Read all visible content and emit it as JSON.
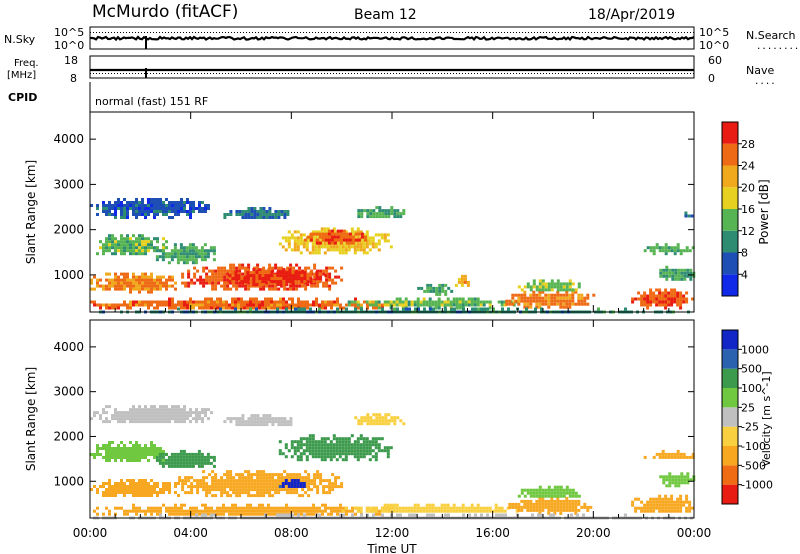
{
  "header": {
    "station": "McMurdo (fitACF)",
    "beam": "Beam 12",
    "date": "18/Apr/2019"
  },
  "strip_nsky": {
    "left_label": "N.Sky",
    "left_ticks": [
      "10^5",
      "10^0"
    ],
    "right_ticks": [
      "10^5",
      "10^0"
    ],
    "right_label": "N.Search",
    "right_legend": "........"
  },
  "strip_freq": {
    "label_line1": "Freq.",
    "label_line2": "[MHz]",
    "left_ticks": [
      "18",
      "8"
    ],
    "right_ticks": [
      "60",
      "0"
    ],
    "right_label": "Nave",
    "right_legend": "...."
  },
  "cpid": {
    "label": "CPID",
    "mode": "normal (fast) 151 RF"
  },
  "time_axis": {
    "ticks": [
      "00:00",
      "04:00",
      "08:00",
      "12:00",
      "16:00",
      "20:00",
      "00:00"
    ],
    "label": "Time UT"
  },
  "chart_data": [
    {
      "type": "heatmap",
      "title": "",
      "xlabel": "Time UT",
      "ylabel": "Slant Range [km]",
      "x_range_hours": [
        0,
        24
      ],
      "ylim": [
        180,
        4600
      ],
      "y_ticks": [
        1000,
        2000,
        3000,
        4000
      ],
      "colorbar": {
        "label": "Power [dB]",
        "ticks": [
          "4",
          "8",
          "12",
          "16",
          "20",
          "24",
          "28"
        ],
        "levels": [
          0,
          4,
          8,
          12,
          16,
          20,
          24,
          28,
          30
        ],
        "colors": [
          "#1028e8",
          "#1e4fb4",
          "#2e8c73",
          "#57b453",
          "#e8d020",
          "#f0a81c",
          "#ef6a14",
          "#e81c12"
        ]
      },
      "regions": [
        {
          "t": [
            0.0,
            4.8
          ],
          "r": [
            2300,
            2700
          ],
          "level": 6
        },
        {
          "t": [
            5.3,
            8.0
          ],
          "r": [
            2250,
            2500
          ],
          "level": 8
        },
        {
          "t": [
            10.5,
            12.5
          ],
          "r": [
            2280,
            2520
          ],
          "level": 12
        },
        {
          "t": [
            0.0,
            3.0
          ],
          "r": [
            1450,
            1900
          ],
          "level": 14
        },
        {
          "t": [
            2.5,
            5.0
          ],
          "r": [
            1300,
            1700
          ],
          "level": 12
        },
        {
          "t": [
            7.5,
            12.0
          ],
          "r": [
            1500,
            2050
          ],
          "level": 19
        },
        {
          "t": [
            8.5,
            11.0
          ],
          "r": [
            1700,
            2000
          ],
          "level": 27
        },
        {
          "t": [
            0.0,
            3.5
          ],
          "r": [
            650,
            1050
          ],
          "level": 25
        },
        {
          "t": [
            3.5,
            10.0
          ],
          "r": [
            700,
            1250
          ],
          "level": 27
        },
        {
          "t": [
            5.5,
            9.5
          ],
          "r": [
            800,
            1150
          ],
          "level": 29
        },
        {
          "t": [
            0.0,
            12.0
          ],
          "r": [
            250,
            500
          ],
          "level": 26
        },
        {
          "t": [
            10.0,
            17.0
          ],
          "r": [
            300,
            500
          ],
          "level": 14
        },
        {
          "t": [
            13.0,
            14.5
          ],
          "r": [
            600,
            800
          ],
          "level": 12
        },
        {
          "t": [
            14.5,
            15.0
          ],
          "r": [
            750,
            1000
          ],
          "level": 22
        },
        {
          "t": [
            16.5,
            20.0
          ],
          "r": [
            300,
            650
          ],
          "level": 25
        },
        {
          "t": [
            17.0,
            19.5
          ],
          "r": [
            650,
            900
          ],
          "level": 15
        },
        {
          "t": [
            21.5,
            24.0
          ],
          "r": [
            300,
            700
          ],
          "level": 27
        },
        {
          "t": [
            22.0,
            24.0
          ],
          "r": [
            1500,
            1700
          ],
          "level": 13
        },
        {
          "t": [
            22.5,
            24.0
          ],
          "r": [
            900,
            1200
          ],
          "level": 12
        },
        {
          "t": [
            23.5,
            24.0
          ],
          "r": [
            2300,
            2400
          ],
          "level": 8
        },
        {
          "t": [
            0.0,
            24.0
          ],
          "r": [
            180,
            280
          ],
          "level": 10
        }
      ]
    },
    {
      "type": "heatmap",
      "title": "",
      "xlabel": "Time UT",
      "ylabel": "Slant Range [km]",
      "x_range_hours": [
        0,
        24
      ],
      "ylim": [
        180,
        4600
      ],
      "y_ticks": [
        1000,
        2000,
        3000,
        4000
      ],
      "colorbar": {
        "label": "Velocity [m s^-1]",
        "ticks": [
          "1000",
          "500",
          "100",
          "25",
          "-25",
          "-100",
          "-500",
          "-1000"
        ],
        "levels": [
          -1500,
          -1000,
          -500,
          -100,
          -25,
          25,
          100,
          500,
          1000,
          1500
        ],
        "colors": [
          "#e81c12",
          "#f06c14",
          "#f8a820",
          "#f8d040",
          "#c0c0c0",
          "#70c840",
          "#3c9a4c",
          "#2a62b0",
          "#1226c8"
        ]
      },
      "regions": [
        {
          "t": [
            0.0,
            4.8
          ],
          "r": [
            2300,
            2700
          ],
          "value": 0
        },
        {
          "t": [
            5.3,
            8.0
          ],
          "r": [
            2250,
            2500
          ],
          "value": 0
        },
        {
          "t": [
            10.5,
            12.5
          ],
          "r": [
            2280,
            2520
          ],
          "value": -60
        },
        {
          "t": [
            0.0,
            3.0
          ],
          "r": [
            1450,
            1900
          ],
          "value": 60
        },
        {
          "t": [
            2.5,
            5.0
          ],
          "r": [
            1300,
            1700
          ],
          "value": 150
        },
        {
          "t": [
            7.5,
            12.0
          ],
          "r": [
            1500,
            2050
          ],
          "value": 200
        },
        {
          "t": [
            0.0,
            3.5
          ],
          "r": [
            650,
            1050
          ],
          "value": -250
        },
        {
          "t": [
            3.5,
            10.0
          ],
          "r": [
            700,
            1250
          ],
          "value": -300
        },
        {
          "t": [
            7.5,
            8.5
          ],
          "r": [
            850,
            1050
          ],
          "value": 1200
        },
        {
          "t": [
            0.0,
            12.0
          ],
          "r": [
            250,
            500
          ],
          "value": -150
        },
        {
          "t": [
            10.0,
            17.0
          ],
          "r": [
            300,
            500
          ],
          "value": -60
        },
        {
          "t": [
            16.5,
            20.0
          ],
          "r": [
            300,
            650
          ],
          "value": -300
        },
        {
          "t": [
            17.0,
            19.5
          ],
          "r": [
            650,
            900
          ],
          "value": 80
        },
        {
          "t": [
            21.5,
            24.0
          ],
          "r": [
            300,
            700
          ],
          "value": -400
        },
        {
          "t": [
            22.0,
            24.0
          ],
          "r": [
            1500,
            1700
          ],
          "value": -200
        },
        {
          "t": [
            22.5,
            24.0
          ],
          "r": [
            900,
            1200
          ],
          "value": 50
        },
        {
          "t": [
            0.0,
            24.0
          ],
          "r": [
            180,
            280
          ],
          "value": 0
        }
      ]
    }
  ]
}
